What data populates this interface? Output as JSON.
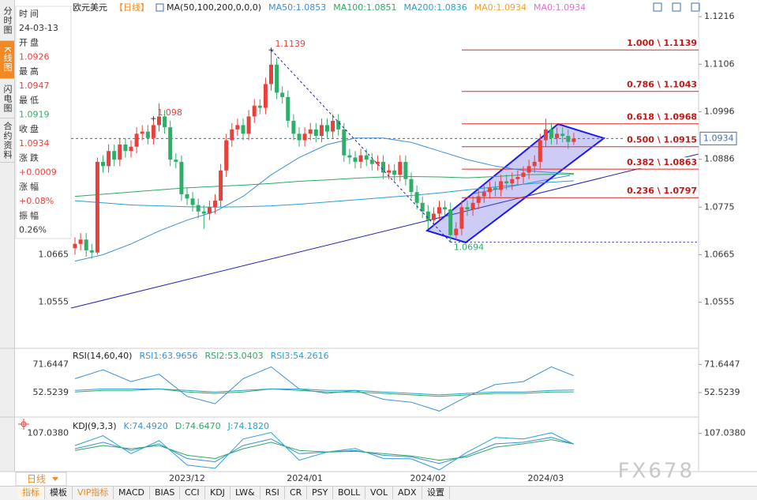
{
  "chart_data": [
    {
      "type": "candlestick",
      "title": "欧元美元",
      "period": "【日线】",
      "indicator": "MA(50,100,200,0,0,0)",
      "up_color": "#e8413c",
      "down_color": "#2fae6a",
      "categories": [
        null,
        null,
        null,
        null,
        null,
        null,
        null,
        null,
        null,
        null,
        null,
        null,
        null,
        null,
        null,
        null,
        null,
        null,
        null,
        null,
        "2023/12",
        null,
        null,
        null,
        null,
        null,
        null,
        null,
        null,
        null,
        null,
        null,
        null,
        null,
        null,
        null,
        null,
        null,
        null,
        null,
        null,
        "2024/01",
        null,
        null,
        null,
        null,
        null,
        null,
        null,
        null,
        null,
        null,
        null,
        null,
        null,
        null,
        null,
        null,
        null,
        null,
        null,
        null,
        null,
        "2024/02",
        null,
        null,
        null,
        null,
        null,
        null,
        null,
        null,
        null,
        null,
        null,
        null,
        null,
        null,
        null,
        null,
        null,
        null,
        null,
        null,
        "2024/03",
        null,
        null,
        null,
        null,
        null
      ],
      "open": [
        1.068,
        1.069,
        1.07,
        1.0675,
        1.067,
        1.088,
        1.087,
        1.0905,
        1.0885,
        1.092,
        1.0905,
        1.0915,
        1.0945,
        1.095,
        1.0935,
        1.0965,
        1.0985,
        1.096,
        1.0885,
        1.088,
        1.0805,
        1.0795,
        1.078,
        1.0765,
        1.076,
        1.0775,
        1.079,
        1.086,
        1.093,
        1.0955,
        1.0965,
        1.0945,
        1.0985,
        1.101,
        1.1005,
        1.106,
        1.1105,
        1.104,
        1.103,
        1.0975,
        1.0945,
        1.093,
        1.0945,
        1.0955,
        1.094,
        1.0965,
        1.095,
        1.0975,
        1.0955,
        1.0895,
        1.089,
        1.088,
        1.0895,
        1.0885,
        1.0875,
        1.088,
        1.0855,
        1.086,
        1.085,
        1.088,
        1.084,
        1.081,
        1.0785,
        1.0765,
        1.0745,
        1.076,
        1.0775,
        1.077,
        1.071,
        1.0725,
        1.0775,
        1.077,
        1.0785,
        1.08,
        1.081,
        1.082,
        1.0815,
        1.0835,
        1.083,
        1.084,
        1.0845,
        1.0855,
        1.087,
        1.088,
        1.093,
        1.0955,
        1.0935,
        1.0945,
        1.094,
        1.0926
      ],
      "high": [
        1.0705,
        1.0715,
        1.0715,
        1.069,
        1.089,
        1.0895,
        1.092,
        1.092,
        1.0935,
        1.0935,
        1.093,
        1.096,
        1.0965,
        1.0965,
        1.098,
        1.1015,
        1.1,
        1.0975,
        1.09,
        1.0895,
        1.082,
        1.081,
        1.0795,
        1.078,
        1.079,
        1.0805,
        1.0875,
        1.0945,
        1.097,
        1.098,
        1.098,
        1.1,
        1.1025,
        1.1025,
        1.1075,
        1.1139,
        1.112,
        1.1055,
        1.1045,
        1.099,
        1.096,
        1.096,
        1.097,
        1.097,
        1.098,
        1.098,
        1.099,
        1.099,
        1.097,
        1.091,
        1.0905,
        1.091,
        1.091,
        1.09,
        1.0895,
        1.0895,
        1.0875,
        1.0875,
        1.0895,
        1.0895,
        1.0855,
        1.0825,
        1.08,
        1.078,
        1.0775,
        1.079,
        1.079,
        1.0785,
        1.074,
        1.079,
        1.079,
        1.08,
        1.0815,
        1.0825,
        1.0835,
        1.0835,
        1.085,
        1.085,
        1.0855,
        1.086,
        1.087,
        1.0885,
        1.0895,
        1.0945,
        1.098,
        1.097,
        1.096,
        1.096,
        1.0955,
        1.0947
      ],
      "low": [
        1.0665,
        1.0675,
        1.066,
        1.0656,
        1.0665,
        1.0855,
        1.0855,
        1.087,
        1.087,
        1.089,
        1.089,
        1.09,
        1.093,
        1.092,
        1.092,
        1.095,
        1.0945,
        1.087,
        1.0865,
        1.079,
        1.078,
        1.0765,
        1.075,
        1.0725,
        1.0745,
        1.076,
        1.0775,
        1.0845,
        1.0915,
        1.094,
        1.093,
        1.093,
        1.097,
        1.099,
        1.099,
        1.1045,
        1.1025,
        1.1015,
        1.096,
        1.093,
        1.0915,
        1.0915,
        1.093,
        1.0925,
        1.0925,
        1.0935,
        1.0935,
        1.094,
        1.088,
        1.0875,
        1.0865,
        1.0865,
        1.087,
        1.086,
        1.086,
        1.084,
        1.084,
        1.0835,
        1.0835,
        1.0825,
        1.0795,
        1.077,
        1.075,
        1.0725,
        1.073,
        1.0745,
        1.0755,
        1.0694,
        1.07,
        1.071,
        1.0755,
        1.0755,
        1.077,
        1.0785,
        1.0795,
        1.08,
        1.08,
        1.0815,
        1.0815,
        1.0825,
        1.083,
        1.084,
        1.0855,
        1.0865,
        1.0915,
        1.092,
        1.092,
        1.0925,
        1.091,
        1.0919
      ],
      "close": [
        1.069,
        1.07,
        1.0675,
        1.067,
        1.088,
        1.087,
        1.0905,
        1.0885,
        1.092,
        1.0905,
        1.0915,
        1.0945,
        1.095,
        1.0935,
        1.0965,
        1.0985,
        1.096,
        1.0885,
        1.088,
        1.0805,
        1.0795,
        1.078,
        1.0765,
        1.076,
        1.0775,
        1.079,
        1.086,
        1.093,
        1.0955,
        1.0965,
        1.0945,
        1.0985,
        1.101,
        1.1005,
        1.106,
        1.1105,
        1.104,
        1.103,
        1.0975,
        1.0945,
        1.093,
        1.0945,
        1.0955,
        1.094,
        1.0965,
        1.095,
        1.0975,
        1.0955,
        1.0895,
        1.089,
        1.088,
        1.0895,
        1.0885,
        1.0875,
        1.088,
        1.0855,
        1.086,
        1.085,
        1.088,
        1.084,
        1.081,
        1.0785,
        1.0765,
        1.0745,
        1.076,
        1.0775,
        1.077,
        1.071,
        1.0725,
        1.0775,
        1.077,
        1.0785,
        1.08,
        1.081,
        1.082,
        1.0815,
        1.0835,
        1.083,
        1.084,
        1.0845,
        1.0855,
        1.087,
        1.088,
        1.093,
        1.0955,
        1.0935,
        1.0945,
        1.094,
        1.0926,
        1.0934
      ],
      "series": [
        {
          "name": "MA50:1.0853",
          "color": "#3d8fd6",
          "x": [
            0,
            5,
            10,
            15,
            20,
            25,
            30,
            35,
            40,
            45,
            50,
            55,
            60,
            65,
            70,
            75,
            80,
            85,
            89
          ],
          "values": [
            1.065,
            1.0665,
            1.069,
            1.072,
            1.0745,
            1.0765,
            1.08,
            1.085,
            1.089,
            1.092,
            1.0935,
            1.0935,
            1.0925,
            1.0905,
            1.0885,
            1.087,
            1.086,
            1.0855,
            1.0853
          ]
        },
        {
          "name": "MA100:1.0851",
          "color": "#2eaa60",
          "x": [
            0,
            5,
            10,
            15,
            20,
            25,
            30,
            35,
            40,
            45,
            50,
            55,
            60,
            65,
            70,
            75,
            80,
            85,
            89
          ],
          "values": [
            1.08,
            1.0805,
            1.081,
            1.0815,
            1.082,
            1.0823,
            1.0826,
            1.083,
            1.0835,
            1.0838,
            1.0842,
            1.0845,
            1.0846,
            1.0845,
            1.0843,
            1.0846,
            1.085,
            1.0851,
            1.0851
          ]
        },
        {
          "name": "MA200:1.0836",
          "color": "#2a9fd0",
          "x": [
            0,
            5,
            10,
            15,
            20,
            25,
            30,
            35,
            40,
            45,
            50,
            55,
            60,
            65,
            70,
            75,
            80,
            85,
            89
          ],
          "values": [
            1.079,
            1.0785,
            1.078,
            1.0778,
            1.0776,
            1.0775,
            1.0776,
            1.0778,
            1.0782,
            1.0787,
            1.0792,
            1.0797,
            1.0802,
            1.0808,
            1.0815,
            1.0822,
            1.0828,
            1.0833,
            1.0836
          ]
        },
        {
          "name": "MA0:1.0934",
          "color": "#f0a030"
        },
        {
          "name": "MA0:1.0934",
          "color": "#e070d0"
        }
      ],
      "ylim": [
        1.045,
        1.124
      ],
      "yticks": [
        1.1216,
        1.1106,
        1.0996,
        1.0886,
        1.0775,
        1.0665,
        1.0555
      ],
      "current_price": 1.0934,
      "peak_labels": [
        1.1139,
        1.098
      ],
      "trough_labels": [
        1.0694
      ],
      "fib_levels": [
        {
          "value": 1.1139,
          "label": "1.000 \\ 1.1139"
        },
        {
          "value": 1.1043,
          "label": "0.786 \\ 1.1043"
        },
        {
          "value": 1.0968,
          "label": "0.618 \\ 1.0968"
        },
        {
          "value": 1.0915,
          "label": "0.500 \\ 1.0915"
        },
        {
          "value": 1.0863,
          "label": "0.382 \\ 1.0863"
        },
        {
          "value": 1.0797,
          "label": "0.236 \\ 1.0797"
        }
      ],
      "fib_color": "#e02828"
    },
    {
      "type": "line",
      "title": "RSI(14,60,40)",
      "x": [
        0,
        5,
        10,
        15,
        20,
        25,
        30,
        35,
        40,
        45,
        50,
        55,
        60,
        65,
        70,
        75,
        80,
        85,
        89
      ],
      "series": [
        {
          "name": "RSI1:63.9656",
          "color": "#3d8fd6",
          "values": [
            62,
            68,
            60,
            65,
            50,
            45,
            62,
            70,
            55,
            52,
            54,
            48,
            46,
            40,
            50,
            58,
            60,
            70,
            63.9656
          ]
        },
        {
          "name": "RSI2:53.0403",
          "color": "#2eaa60",
          "values": [
            53,
            54,
            54,
            55,
            53,
            52,
            53,
            55,
            54,
            53,
            53,
            52,
            51,
            50,
            51,
            52,
            52,
            53,
            53.0403
          ]
        },
        {
          "name": "RSI3:54.2616",
          "color": "#2a9fd0",
          "values": [
            54,
            55,
            55,
            55,
            54,
            53,
            54,
            55,
            55,
            54,
            54,
            53,
            52,
            51,
            52,
            53,
            53,
            54,
            54.2616
          ]
        }
      ],
      "ylim": [
        37,
        81.5
      ],
      "yticks": [
        71.6447,
        52.5239
      ]
    },
    {
      "type": "line",
      "title": "KDJ(9,3,3)",
      "x": [
        0,
        5,
        10,
        15,
        20,
        25,
        30,
        35,
        40,
        45,
        50,
        55,
        60,
        65,
        70,
        75,
        80,
        85,
        89
      ],
      "series": [
        {
          "name": "K:74.4920",
          "color": "#3d8fd6",
          "values": [
            60,
            80,
            55,
            75,
            30,
            20,
            70,
            90,
            45,
            50,
            55,
            40,
            35,
            15,
            40,
            75,
            80,
            95,
            74.492
          ]
        },
        {
          "name": "D:74.6470",
          "color": "#2eaa60",
          "values": [
            55,
            70,
            60,
            70,
            40,
            30,
            60,
            80,
            55,
            50,
            52,
            45,
            38,
            25,
            35,
            65,
            75,
            88,
            74.647
          ]
        },
        {
          "name": "J:74.1820",
          "color": "#2a9fd0",
          "values": [
            70,
            100,
            45,
            85,
            10,
            0,
            90,
            110,
            25,
            50,
            61,
            30,
            29,
            -5,
            50,
            95,
            90,
            109,
            74.182
          ]
        }
      ],
      "ylim": [
        -10,
        150
      ],
      "yticks": [
        {
          "value": 107.038,
          "label": "107.0380"
        }
      ]
    }
  ],
  "sidebar": {
    "tabs": [
      "分时图",
      "K线图",
      "闪电图",
      "合约资料"
    ],
    "active": 1,
    "info": [
      {
        "label": "时间",
        "value": "24-03-13",
        "color": "#333333"
      },
      {
        "label": "开盘",
        "value": "1.0926",
        "color": "#e8413c"
      },
      {
        "label": "最高",
        "value": "1.0947",
        "color": "#e8413c"
      },
      {
        "label": "最低",
        "value": "1.0919",
        "color": "#2fae6a"
      },
      {
        "label": "收盘",
        "value": "1.0934",
        "color": "#e8413c"
      },
      {
        "label": "涨跌",
        "value": "+0.0009",
        "color": "#e8413c"
      },
      {
        "label": "涨幅",
        "value": "+0.08%",
        "color": "#e8413c"
      },
      {
        "label": "振幅",
        "value": "0.26%",
        "color": "#333333"
      }
    ]
  },
  "bottom": {
    "period": "日线",
    "tabs": [
      "指标",
      "模板",
      "VIP指标",
      "MACD",
      "BIAS",
      "CCI",
      "KDJ",
      "LW&",
      "RSI",
      "CR",
      "PSY",
      "BOLL",
      "VOL",
      "ADX",
      "设置"
    ]
  },
  "watermark": "FX678"
}
